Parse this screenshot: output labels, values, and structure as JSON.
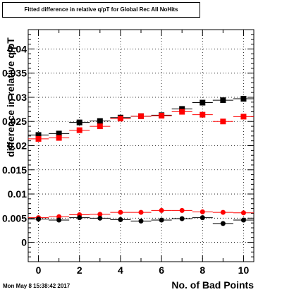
{
  "chart_data": {
    "type": "scatter",
    "title": "Fitted difference in relative q/pT for Global Rec All NoHits",
    "xlabel": "No. of Bad Points",
    "ylabel": "difference in relative q/pT",
    "xlim": [
      -0.5,
      10.5
    ],
    "ylim": [
      -0.004,
      0.044
    ],
    "x_ticks": [
      0,
      2,
      4,
      6,
      8,
      10
    ],
    "x_tick_labels": [
      "0",
      "2",
      "4",
      "6",
      "8",
      "10"
    ],
    "y_ticks": [
      0,
      0.005,
      0.01,
      0.015,
      0.02,
      0.025,
      0.03,
      0.035,
      0.04
    ],
    "y_tick_labels": [
      "0",
      "0.005",
      "0.01",
      "0.015",
      "0.02",
      "0.025",
      "0.03",
      "0.035",
      "0.04"
    ],
    "grid": true,
    "x": [
      0,
      1,
      2,
      3,
      4,
      5,
      6,
      7,
      8,
      9,
      10
    ],
    "series": [
      {
        "marker": "square",
        "color": "#000000",
        "values": [
          0.0222,
          0.0225,
          0.0248,
          0.0251,
          0.0258,
          0.0261,
          0.0263,
          0.0276,
          0.0289,
          0.0294,
          0.0297
        ]
      },
      {
        "marker": "square",
        "color": "#ff0000",
        "values": [
          0.0214,
          0.0216,
          0.0232,
          0.024,
          0.0256,
          0.0261,
          0.0262,
          0.027,
          0.0264,
          0.025,
          0.026
        ]
      },
      {
        "marker": "circle",
        "color": "#ff0000",
        "values": [
          0.0051,
          0.0053,
          0.0057,
          0.0058,
          0.0062,
          0.0062,
          0.0066,
          0.0066,
          0.0063,
          0.0062,
          0.0061
        ]
      },
      {
        "marker": "circle",
        "color": "#000000",
        "values": [
          0.0048,
          0.0046,
          0.0051,
          0.005,
          0.0047,
          0.0044,
          0.0046,
          0.0049,
          0.0051,
          0.0039,
          0.0046
        ]
      }
    ]
  },
  "timestamp": "Mon May  8 15:38:42 2017"
}
